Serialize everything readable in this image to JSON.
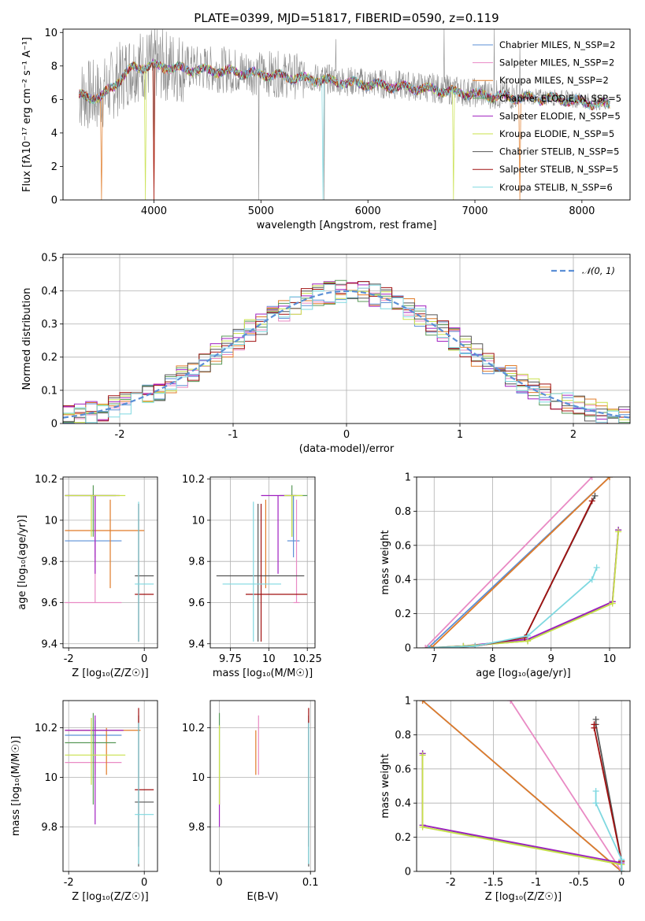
{
  "colors": {
    "chabrier_miles": "#5b8fd6",
    "salpeter_miles": "#e98ac4",
    "kroupa_miles": "#e07b28",
    "chabrier_elodie": "#5a9a59",
    "salpeter_elodie": "#a020c0",
    "kroupa_elodie": "#c8e04a",
    "chabrier_stelib": "#555555",
    "salpeter_stelib": "#a01010",
    "kroupa_stelib": "#7fd8e0",
    "data": "#8c8c8c",
    "normal": "#5b8fd6"
  },
  "chart_data": [
    {
      "type": "line",
      "title": "PLATE=0399, MJD=51817, FIBERID=0590, z=0.119",
      "xlabel": "wavelength [Angstrom, rest frame]",
      "ylabel": "Flux [fλ10⁻¹⁷ erg cm⁻² s⁻¹ A⁻¹]",
      "xlim": [
        3150,
        8450
      ],
      "ylim": [
        0,
        10.2
      ],
      "xticks": [
        4000,
        5000,
        6000,
        7000,
        8000
      ],
      "yticks": [
        0,
        2,
        4,
        6,
        8,
        10
      ],
      "legend_placement": "upper right",
      "series": [
        {
          "name": "Chabrier MILES, N_SSP=2",
          "color_key": "chabrier_miles"
        },
        {
          "name": "Salpeter MILES, N_SSP=2",
          "color_key": "salpeter_miles"
        },
        {
          "name": "Kroupa MILES, N_SSP=2",
          "color_key": "kroupa_miles"
        },
        {
          "name": "Chabrier ELODIE, N_SSP=5",
          "color_key": "chabrier_elodie"
        },
        {
          "name": "Salpeter ELODIE, N_SSP=5",
          "color_key": "salpeter_elodie"
        },
        {
          "name": "Kroupa ELODIE, N_SSP=5",
          "color_key": "kroupa_elodie"
        },
        {
          "name": "Chabrier STELIB, N_SSP=5",
          "color_key": "chabrier_stelib"
        },
        {
          "name": "Salpeter STELIB, N_SSP=5",
          "color_key": "salpeter_stelib"
        },
        {
          "name": "Kroupa STELIB, N_SSP=6",
          "color_key": "kroupa_stelib"
        }
      ],
      "continuum": {
        "x": [
          3300,
          3500,
          3800,
          4000,
          4300,
          4600,
          5000,
          5400,
          5800,
          6200,
          6600,
          7000,
          7400,
          7800,
          8200
        ],
        "y": [
          6.3,
          6.2,
          8.0,
          8.1,
          7.9,
          7.8,
          7.6,
          7.35,
          7.1,
          6.9,
          6.7,
          6.4,
          6.2,
          6.1,
          5.8
        ]
      },
      "drops": [
        {
          "x": 3510,
          "key": "kroupa_miles"
        },
        {
          "x": 3920,
          "key": "kroupa_elodie"
        },
        {
          "x": 4000,
          "key": "kroupa_miles"
        },
        {
          "x": 4000,
          "key": "salpeter_stelib"
        },
        {
          "x": 5580,
          "key": "kroupa_stelib"
        },
        {
          "x": 6800,
          "key": "kroupa_elodie"
        },
        {
          "x": 7420,
          "key": "kroupa_miles"
        }
      ],
      "data_spikes": [
        {
          "x": 4000,
          "y": 0
        },
        {
          "x": 4980,
          "y": 0
        },
        {
          "x": 5590,
          "y": 0
        },
        {
          "x": 5700,
          "y": 9.6
        },
        {
          "x": 6710,
          "y": 10.2
        },
        {
          "x": 7180,
          "y": 10.2
        },
        {
          "x": 7420,
          "y": 9.2
        }
      ]
    },
    {
      "type": "bar",
      "xlabel": "(data-model)/error",
      "ylabel": "Normed distribution",
      "xlim": [
        -2.5,
        2.5
      ],
      "ylim": [
        0,
        0.51
      ],
      "xticks": [
        -2,
        -1,
        0,
        1,
        2
      ],
      "yticks": [
        0.0,
        0.1,
        0.2,
        0.3,
        0.4,
        0.5
      ],
      "bin_width": 0.1,
      "bin_start": -2.5,
      "normal_curve": {
        "name": "N(0,1)",
        "mean": 0,
        "sigma": 1
      },
      "normal_label": "𝒩(0, 1)",
      "legend_placement": "upper right"
    },
    {
      "type": "scatter",
      "xlabel": "Z [log₁₀(Z/Z☉)]",
      "ylabel": "age  [log₁₀(age/yr)]",
      "xlim": [
        -2.15,
        0.35
      ],
      "ylim": [
        9.38,
        10.21
      ],
      "xticks": [
        -2,
        0
      ],
      "yticks": [
        9.4,
        9.6,
        9.8,
        10.0,
        10.2
      ],
      "points": [
        {
          "key": "chabrier_miles",
          "x": -1.3,
          "y": 9.9,
          "xerr": [
            0.8,
            0.7
          ],
          "yerr": [
            0.08,
            0.22
          ]
        },
        {
          "key": "salpeter_miles",
          "x": -1.3,
          "y": 9.6,
          "xerr": [
            0.8,
            0.7
          ],
          "yerr": [
            0.0,
            0.5
          ]
        },
        {
          "key": "kroupa_miles",
          "x": -0.9,
          "y": 9.95,
          "xerr": [
            1.2,
            0.9
          ],
          "yerr": [
            0.28,
            0.15
          ]
        },
        {
          "key": "chabrier_elodie",
          "x": -1.35,
          "y": 10.12,
          "xerr": [
            0.75,
            0.6
          ],
          "yerr": [
            0.2,
            0.05
          ]
        },
        {
          "key": "salpeter_elodie",
          "x": -1.3,
          "y": 10.12,
          "xerr": [
            0.8,
            0.65
          ],
          "yerr": [
            0.38,
            0.0
          ]
        },
        {
          "key": "kroupa_elodie",
          "x": -1.4,
          "y": 10.12,
          "xerr": [
            0.7,
            0.9
          ],
          "yerr": [
            0.2,
            0.0
          ]
        },
        {
          "key": "chabrier_stelib",
          "x": -0.15,
          "y": 9.73,
          "xerr": [
            0.1,
            0.4
          ],
          "yerr": [
            0.32,
            0.35
          ]
        },
        {
          "key": "salpeter_stelib",
          "x": -0.15,
          "y": 9.64,
          "xerr": [
            0.1,
            0.4
          ],
          "yerr": [
            0.23,
            0.44
          ]
        },
        {
          "key": "kroupa_stelib",
          "x": -0.15,
          "y": 9.69,
          "xerr": [
            0.1,
            0.4
          ],
          "yerr": [
            0.28,
            0.4
          ]
        }
      ]
    },
    {
      "type": "scatter",
      "xlabel": "mass [log₁₀(M/M☉)]",
      "xlim": [
        9.62,
        10.3
      ],
      "ylim": [
        9.38,
        10.21
      ],
      "xticks": [
        9.75,
        10.0,
        10.25
      ],
      "yticks": [
        9.4,
        9.6,
        9.8,
        10.0,
        10.2
      ],
      "points": [
        {
          "key": "chabrier_miles",
          "x": 10.16,
          "y": 9.9,
          "xerr": [
            0.04,
            0.04
          ],
          "yerr": [
            0.08,
            0.22
          ]
        },
        {
          "key": "salpeter_miles",
          "x": 10.18,
          "y": 9.6,
          "xerr": [
            0.02,
            0.02
          ],
          "yerr": [
            0.0,
            0.5
          ]
        },
        {
          "key": "kroupa_miles",
          "x": 9.98,
          "y": 9.95,
          "xerr": [
            0.0,
            0.0
          ],
          "yerr": [
            0.28,
            0.15
          ]
        },
        {
          "key": "chabrier_elodie",
          "x": 10.15,
          "y": 10.12,
          "xerr": [
            0.08,
            0.1
          ],
          "yerr": [
            0.2,
            0.05
          ]
        },
        {
          "key": "salpeter_elodie",
          "x": 10.06,
          "y": 10.12,
          "xerr": [
            0.11,
            0.12
          ],
          "yerr": [
            0.38,
            0.0
          ]
        },
        {
          "key": "kroupa_elodie",
          "x": 10.15,
          "y": 10.12,
          "xerr": [
            0.05,
            0.07
          ],
          "yerr": [
            0.2,
            0.0
          ]
        },
        {
          "key": "chabrier_stelib",
          "x": 9.93,
          "y": 9.73,
          "xerr": [
            0.27,
            0.3
          ],
          "yerr": [
            0.32,
            0.35
          ]
        },
        {
          "key": "salpeter_stelib",
          "x": 9.95,
          "y": 9.64,
          "xerr": [
            0.1,
            0.3
          ],
          "yerr": [
            0.23,
            0.44
          ]
        },
        {
          "key": "kroupa_stelib",
          "x": 9.9,
          "y": 9.69,
          "xerr": [
            0.2,
            0.18
          ],
          "yerr": [
            0.28,
            0.4
          ]
        }
      ]
    },
    {
      "type": "line",
      "xlabel": "age  [log₁₀(age/yr)]",
      "ylabel": "mass weight",
      "xlim": [
        6.7,
        10.35
      ],
      "ylim": [
        0,
        1
      ],
      "xticks": [
        7,
        8,
        9,
        10
      ],
      "yticks": [
        0.0,
        0.2,
        0.4,
        0.6,
        0.8,
        1.0
      ],
      "series": [
        {
          "key": "chabrier_miles",
          "x": [
            6.9,
            10.0
          ],
          "y": [
            0.0,
            1.0
          ]
        },
        {
          "key": "salpeter_miles",
          "x": [
            6.85,
            9.7
          ],
          "y": [
            0.0,
            1.0
          ]
        },
        {
          "key": "kroupa_miles",
          "x": [
            6.95,
            10.0
          ],
          "y": [
            0.0,
            1.0
          ]
        },
        {
          "key": "chabrier_elodie",
          "x": [
            6.9,
            7.5,
            8.6,
            10.05,
            10.15
          ],
          "y": [
            0.0,
            0.01,
            0.04,
            0.27,
            0.69
          ]
        },
        {
          "key": "salpeter_elodie",
          "x": [
            6.9,
            7.5,
            8.6,
            10.05,
            10.15
          ],
          "y": [
            0.0,
            0.01,
            0.05,
            0.27,
            0.69
          ]
        },
        {
          "key": "kroupa_elodie",
          "x": [
            6.9,
            7.5,
            8.6,
            10.05,
            10.15
          ],
          "y": [
            0.0,
            0.01,
            0.04,
            0.26,
            0.68
          ]
        },
        {
          "key": "chabrier_stelib",
          "x": [
            6.9,
            7.7,
            8.55,
            9.75
          ],
          "y": [
            0.0,
            0.01,
            0.06,
            0.89
          ]
        },
        {
          "key": "salpeter_stelib",
          "x": [
            6.9,
            7.7,
            8.55,
            9.7
          ],
          "y": [
            0.0,
            0.01,
            0.06,
            0.86
          ]
        },
        {
          "key": "kroupa_stelib",
          "x": [
            6.9,
            7.7,
            8.6,
            9.7,
            9.78
          ],
          "y": [
            0.0,
            0.01,
            0.07,
            0.4,
            0.47
          ]
        }
      ]
    },
    {
      "type": "scatter",
      "xlabel": "Z [log₁₀(Z/Z☉)]",
      "ylabel": "mass [log₁₀(M/M☉)]",
      "xlim": [
        -2.15,
        0.35
      ],
      "ylim": [
        9.62,
        10.31
      ],
      "xticks": [
        -2,
        0
      ],
      "yticks": [
        9.8,
        10.0,
        10.2
      ],
      "points": [
        {
          "key": "chabrier_miles",
          "x": -1.3,
          "y": 10.17,
          "xerr": [
            0.8,
            0.7
          ],
          "yerr": [
            0.06,
            0.06
          ]
        },
        {
          "key": "salpeter_miles",
          "x": -1.3,
          "y": 10.06,
          "xerr": [
            0.8,
            0.7
          ],
          "yerr": [
            0.05,
            0.1
          ]
        },
        {
          "key": "kroupa_miles",
          "x": -1.0,
          "y": 10.19,
          "xerr": [
            1.1,
            0.9
          ],
          "yerr": [
            0.18,
            0.01
          ]
        },
        {
          "key": "chabrier_elodie",
          "x": -1.35,
          "y": 10.14,
          "xerr": [
            0.75,
            0.6
          ],
          "yerr": [
            0.25,
            0.12
          ]
        },
        {
          "key": "salpeter_elodie",
          "x": -1.3,
          "y": 10.19,
          "xerr": [
            0.8,
            0.75
          ],
          "yerr": [
            0.38,
            0.06
          ]
        },
        {
          "key": "kroupa_elodie",
          "x": -1.4,
          "y": 10.09,
          "xerr": [
            0.7,
            0.9
          ],
          "yerr": [
            0.12,
            0.15
          ]
        },
        {
          "key": "chabrier_stelib",
          "x": -0.15,
          "y": 9.9,
          "xerr": [
            0.1,
            0.4
          ],
          "yerr": [
            0.26,
            0.35
          ]
        },
        {
          "key": "salpeter_stelib",
          "x": -0.15,
          "y": 9.95,
          "xerr": [
            0.1,
            0.4
          ],
          "yerr": [
            0.23,
            0.33
          ]
        },
        {
          "key": "kroupa_stelib",
          "x": -0.15,
          "y": 9.85,
          "xerr": [
            0.1,
            0.4
          ],
          "yerr": [
            0.2,
            0.37
          ]
        }
      ]
    },
    {
      "type": "scatter",
      "xlabel": "E(B-V)",
      "xlim": [
        -0.01,
        0.105
      ],
      "ylim": [
        9.62,
        10.31
      ],
      "xticks": [
        0.0,
        0.1
      ],
      "yticks": [
        9.8,
        10.0,
        10.2
      ],
      "points": [
        {
          "key": "chabrier_miles",
          "x": 0.098,
          "y": 10.17,
          "xerr": [
            0,
            0
          ],
          "yerr": [
            0.06,
            0.06
          ]
        },
        {
          "key": "salpeter_miles",
          "x": 0.043,
          "y": 10.06,
          "xerr": [
            0,
            0
          ],
          "yerr": [
            0.05,
            0.19
          ]
        },
        {
          "key": "kroupa_miles",
          "x": 0.04,
          "y": 10.19,
          "xerr": [
            0,
            0
          ],
          "yerr": [
            0.18,
            0.0
          ]
        },
        {
          "key": "chabrier_elodie",
          "x": 0.0,
          "y": 10.14,
          "xerr": [
            0,
            0
          ],
          "yerr": [
            0.25,
            0.12
          ]
        },
        {
          "key": "salpeter_elodie",
          "x": 0.0,
          "y": 10.0,
          "xerr": [
            0,
            0
          ],
          "yerr": [
            0.2,
            0.0
          ]
        },
        {
          "key": "kroupa_elodie",
          "x": 0.0,
          "y": 10.09,
          "xerr": [
            0,
            0
          ],
          "yerr": [
            0.2,
            0.12
          ]
        },
        {
          "key": "chabrier_stelib",
          "x": 0.098,
          "y": 9.9,
          "xerr": [
            0,
            0
          ],
          "yerr": [
            0.26,
            0.35
          ]
        },
        {
          "key": "salpeter_stelib",
          "x": 0.098,
          "y": 9.95,
          "xerr": [
            0,
            0
          ],
          "yerr": [
            0.23,
            0.33
          ]
        },
        {
          "key": "kroupa_stelib",
          "x": 0.098,
          "y": 9.85,
          "xerr": [
            0,
            0
          ],
          "yerr": [
            0.2,
            0.37
          ]
        }
      ]
    },
    {
      "type": "line",
      "xlabel": "Z [log₁₀(Z/Z☉)]",
      "ylabel": "mass weight",
      "xlim": [
        -2.4,
        0.1
      ],
      "ylim": [
        0,
        1
      ],
      "xticks": [
        -2.0,
        -1.5,
        -1.0,
        -0.5,
        0.0
      ],
      "yticks": [
        0.0,
        0.2,
        0.4,
        0.6,
        0.8,
        1.0
      ],
      "series": [
        {
          "key": "chabrier_miles",
          "x": [
            -2.33,
            0.0
          ],
          "y": [
            1.0,
            0.0
          ]
        },
        {
          "key": "kroupa_miles",
          "x": [
            -2.33,
            0.0
          ],
          "y": [
            1.0,
            0.0
          ]
        },
        {
          "key": "salpeter_miles",
          "x": [
            -1.3,
            0.0
          ],
          "y": [
            1.0,
            0.0
          ]
        },
        {
          "key": "chabrier_elodie",
          "x": [
            -2.33,
            -2.33,
            0.0,
            0.0
          ],
          "y": [
            0.69,
            0.27,
            0.04,
            0.0
          ]
        },
        {
          "key": "salpeter_elodie",
          "x": [
            -2.33,
            -2.33,
            0.0,
            0.0
          ],
          "y": [
            0.69,
            0.27,
            0.05,
            0.0
          ]
        },
        {
          "key": "kroupa_elodie",
          "x": [
            -2.33,
            -2.33,
            0.0,
            0.0
          ],
          "y": [
            0.68,
            0.26,
            0.04,
            0.0
          ]
        },
        {
          "key": "chabrier_stelib",
          "x": [
            -0.3,
            -0.3,
            0.0
          ],
          "y": [
            0.89,
            0.86,
            0.06
          ]
        },
        {
          "key": "salpeter_stelib",
          "x": [
            -0.32,
            -0.32,
            0.0
          ],
          "y": [
            0.86,
            0.84,
            0.06
          ]
        },
        {
          "key": "kroupa_stelib",
          "x": [
            -0.3,
            -0.3,
            0.0,
            0.0
          ],
          "y": [
            0.47,
            0.4,
            0.07,
            0.0
          ]
        }
      ]
    }
  ]
}
